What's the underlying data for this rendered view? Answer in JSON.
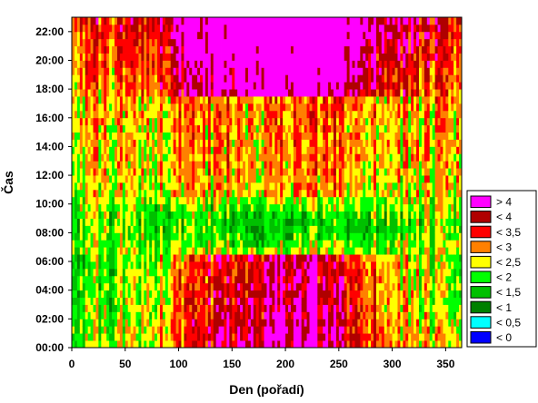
{
  "chart_data": {
    "type": "heatmap",
    "xlabel": "Den (pořadí)",
    "ylabel": "Čas",
    "x_ticks": [
      0,
      50,
      100,
      150,
      200,
      250,
      300,
      350
    ],
    "y_ticks": [
      "00:00",
      "02:00",
      "04:00",
      "06:00",
      "08:00",
      "10:00",
      "12:00",
      "14:00",
      "16:00",
      "18:00",
      "20:00",
      "22:00"
    ],
    "xlim": [
      0,
      365
    ],
    "ylim": [
      0,
      23
    ],
    "legend_placement": "right",
    "levels": [
      {
        "label": "> 4",
        "color": "#ff00ff"
      },
      {
        "label": "< 4",
        "color": "#b00000"
      },
      {
        "label": "< 3,5",
        "color": "#ff0000"
      },
      {
        "label": "< 3",
        "color": "#ff8000"
      },
      {
        "label": "< 2,5",
        "color": "#ffff00"
      },
      {
        "label": "< 2",
        "color": "#00ff00"
      },
      {
        "label": "< 1,5",
        "color": "#00c000"
      },
      {
        "label": "< 1",
        "color": "#008000"
      },
      {
        "label": "< 0,5",
        "color": "#00ffff"
      },
      {
        "label": "< 0",
        "color": "#0000ff"
      }
    ]
  }
}
